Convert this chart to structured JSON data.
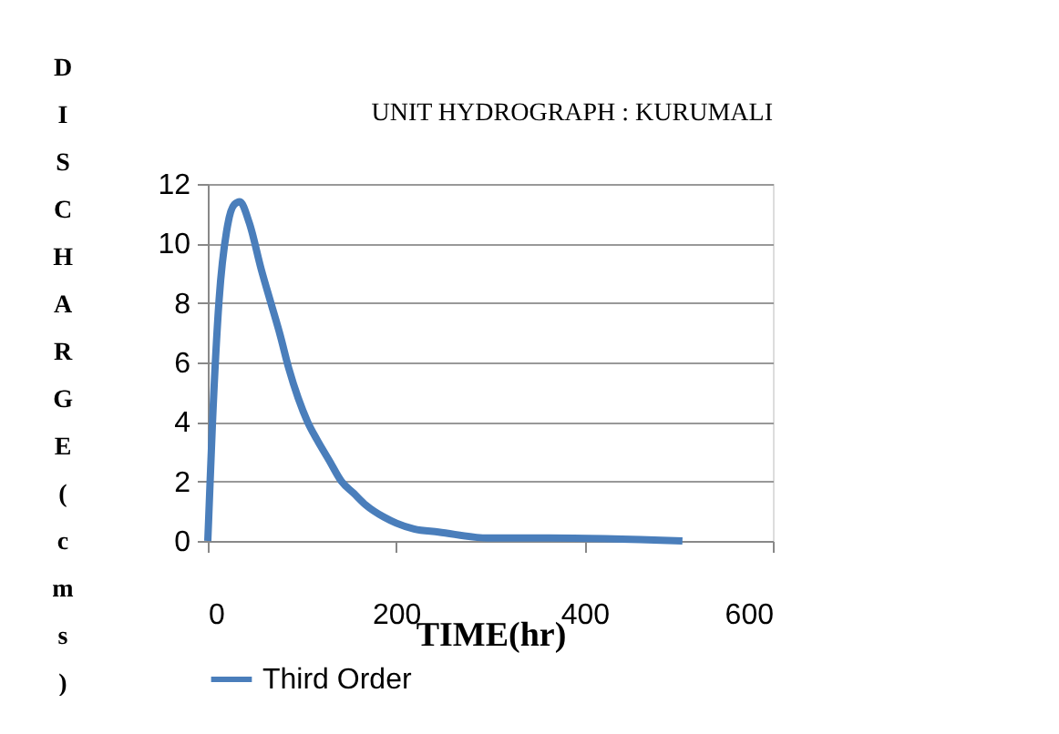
{
  "chart_data": {
    "type": "line",
    "title": "UNIT HYDROGRAPH : KURUMALI",
    "xlabel": "TIME(hr)",
    "ylabel": "DISCHARGE(cms)",
    "series": [
      {
        "name": "Third Order",
        "color": "#4a7ebb",
        "x": [
          0,
          1,
          5,
          12,
          21,
          28,
          34,
          44,
          57,
          67,
          77,
          86,
          96,
          106,
          116,
          129,
          142,
          155,
          168,
          187,
          200,
          219,
          245,
          297,
          362,
          504
        ],
        "values": [
          0,
          0.8,
          4,
          8.1,
          10.6,
          11.3,
          11.4,
          10.7,
          9.1,
          8.0,
          6.9,
          5.8,
          4.8,
          4.0,
          3.4,
          2.7,
          2.0,
          1.6,
          1.2,
          0.8,
          0.6,
          0.4,
          0.3,
          0.1,
          0.1,
          0
        ]
      }
    ],
    "xlim": [
      0,
      600
    ],
    "xticks": [
      0,
      200,
      400,
      600
    ],
    "ylim": [
      0,
      12
    ],
    "yticks": [
      0,
      2,
      4,
      6,
      8,
      10,
      12
    ],
    "grid": "y",
    "legend": "bottom",
    "marker": "none",
    "line_style": "solid"
  }
}
